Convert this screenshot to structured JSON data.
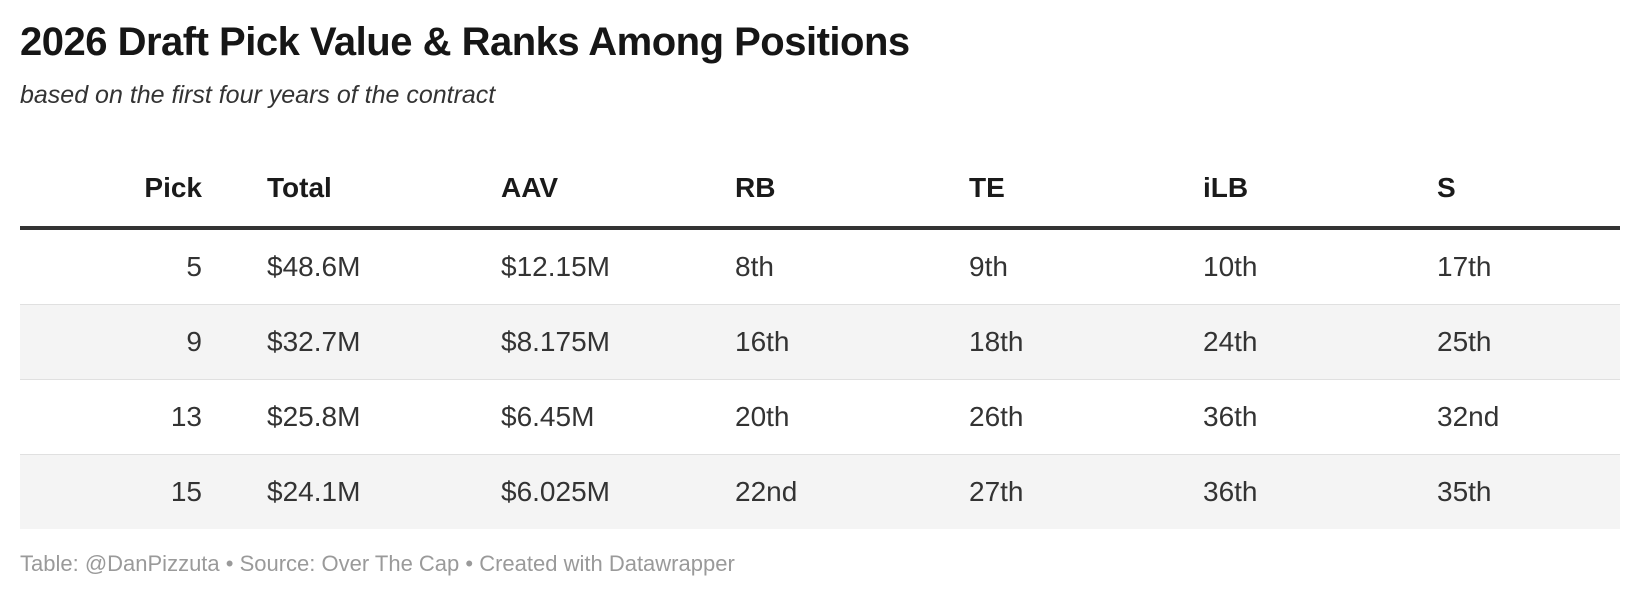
{
  "chart_data": {
    "type": "table",
    "title": "2026 Draft Pick Value & Ranks Among Positions",
    "subtitle": "based on the first four years of the contract",
    "columns": [
      "Pick",
      "Total",
      "AAV",
      "RB",
      "TE",
      "iLB",
      "S"
    ],
    "column_alignment": [
      "right",
      "left",
      "left",
      "left",
      "left",
      "left",
      "left"
    ],
    "rows": [
      [
        "5",
        "$48.6M",
        "$12.15M",
        "8th",
        "9th",
        "10th",
        "17th"
      ],
      [
        "9",
        "$32.7M",
        "$8.175M",
        "16th",
        "18th",
        "24th",
        "25th"
      ],
      [
        "13",
        "$25.8M",
        "$6.45M",
        "20th",
        "26th",
        "36th",
        "32nd"
      ],
      [
        "15",
        "$24.1M",
        "$6.025M",
        "22nd",
        "27th",
        "36th",
        "35th"
      ]
    ],
    "footer": "Table: @DanPizzuta • Source: Over The Cap • Created with Datawrapper",
    "layout_hints": {
      "zebra_striping": true,
      "header_rule": "thick-dark",
      "grid": "horizontal-only"
    },
    "colors": {
      "title_text": "#161616",
      "header_text": "#1a1a1a",
      "body_text": "#333333",
      "header_border": "#333333",
      "row_divider": "#e0e0e0",
      "stripe_background": "#f4f4f4",
      "footer_text": "#9a9a9a",
      "background": "#ffffff"
    }
  }
}
